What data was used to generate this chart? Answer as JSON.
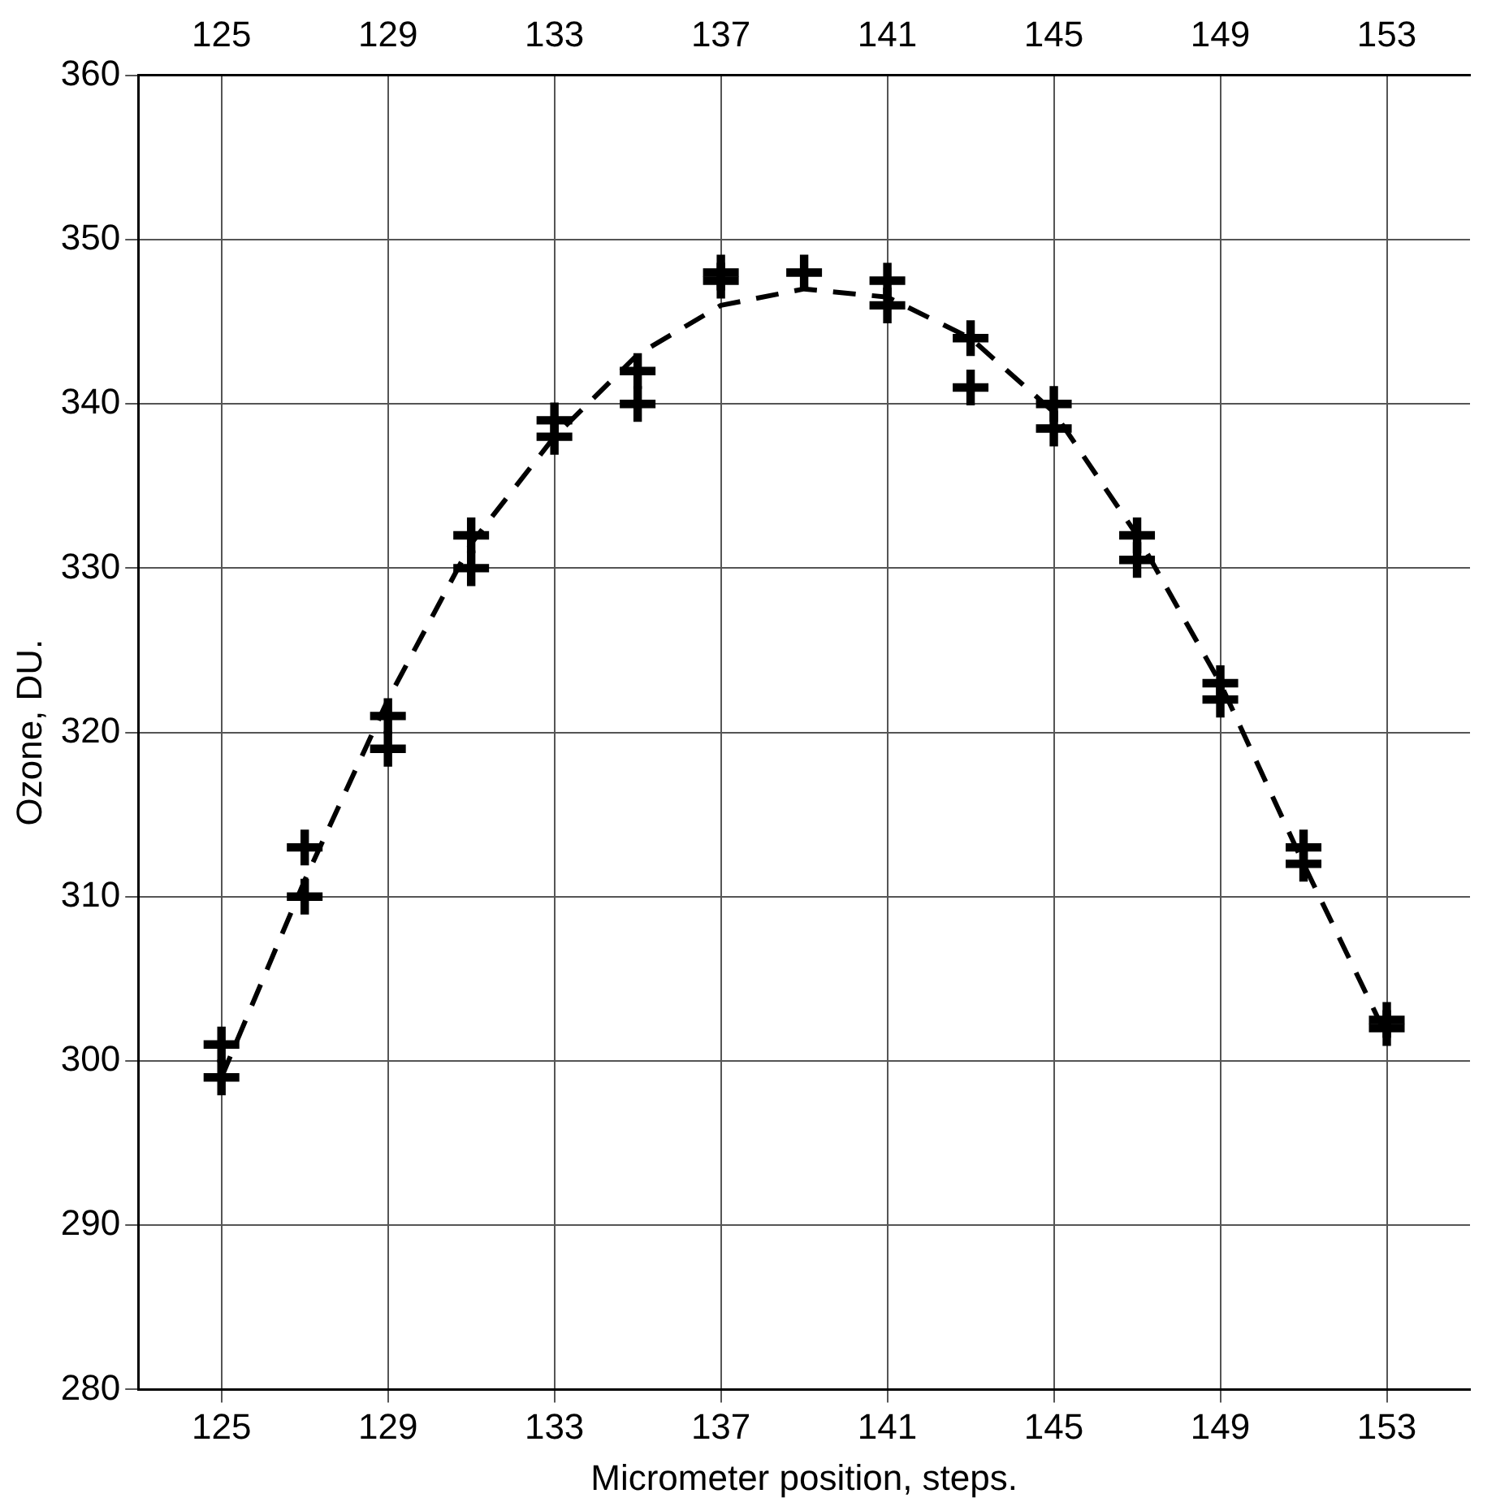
{
  "chart_data": {
    "type": "scatter",
    "xlabel": "Micrometer position, steps.",
    "ylabel": "Ozone, DU.",
    "xlim": [
      123,
      155
    ],
    "xticks": [
      125,
      129,
      133,
      137,
      141,
      145,
      149,
      153
    ],
    "x2lim": [
      123,
      155
    ],
    "x2ticks": [
      125,
      129,
      133,
      137,
      141,
      145,
      149,
      153
    ],
    "ylim": [
      280,
      360
    ],
    "yticks": [
      280,
      290,
      300,
      310,
      320,
      330,
      340,
      350,
      360
    ],
    "grid": true,
    "legend": false,
    "series": [
      {
        "type": "scatter",
        "color": "#000000",
        "marker": "cross",
        "x": [
          125,
          125,
          127,
          127,
          129,
          129,
          131,
          131,
          133,
          133,
          135,
          135,
          137,
          137,
          139,
          141,
          141,
          143,
          143,
          145,
          145,
          147,
          147,
          149,
          149,
          151,
          151,
          153,
          153
        ],
        "values": [
          301,
          299,
          313,
          310,
          321,
          319,
          332,
          330,
          339,
          338,
          342,
          340,
          348,
          347.5,
          348,
          347.5,
          346,
          344,
          341,
          340,
          338.5,
          332,
          330.5,
          323,
          322,
          313,
          312,
          302.5,
          302
        ]
      },
      {
        "type": "line",
        "color": "#000000",
        "marker": "none",
        "line_style": "dashed",
        "x": [
          125,
          127,
          129,
          131,
          133,
          135,
          137,
          139,
          141,
          143,
          145,
          147,
          149,
          151,
          153
        ],
        "values": [
          299,
          311,
          322,
          331.5,
          338,
          343,
          346,
          347,
          346.5,
          344,
          339.5,
          332,
          323,
          312,
          301.5
        ]
      }
    ]
  }
}
